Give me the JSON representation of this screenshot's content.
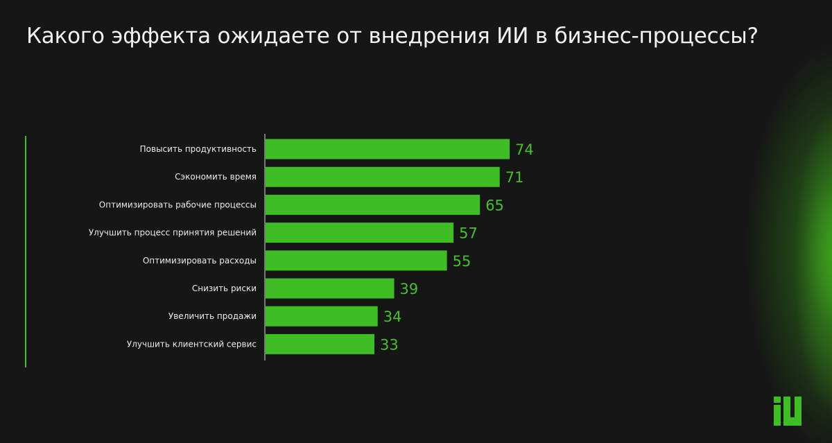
{
  "title": "Какого эффекта ожидаете от внедрения ИИ в бизнес-процессы?",
  "colors": {
    "background": "#161616",
    "bar": "#3ebd25",
    "accent": "#45c02a",
    "text": "#ececec"
  },
  "logo": {
    "icon": "iu-logo-icon",
    "text": "iU"
  },
  "chart_data": {
    "type": "bar",
    "orientation": "horizontal",
    "title": "Какого эффекта ожидаете от внедрения ИИ в бизнес-процессы?",
    "xlabel": "",
    "ylabel": "",
    "xlim": [
      0,
      74
    ],
    "grid": false,
    "categories": [
      "Повысить продуктивность",
      "Сэкономить время",
      "Оптимизировать рабочие процессы",
      "Улучшить процесс принятия решений",
      "Оптимизировать расходы",
      "Снизить риски",
      "Увеличить продажи",
      "Улучшить клиентский сервис"
    ],
    "values": [
      74,
      71,
      65,
      57,
      55,
      39,
      34,
      33
    ]
  }
}
